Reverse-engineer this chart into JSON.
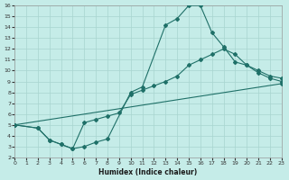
{
  "xlabel": "Humidex (Indice chaleur)",
  "bg_color": "#c5ece8",
  "grid_color": "#a8d4cf",
  "line_color": "#1f7068",
  "xlim": [
    0,
    23
  ],
  "ylim": [
    2,
    16
  ],
  "xticks": [
    0,
    1,
    2,
    3,
    4,
    5,
    6,
    7,
    8,
    9,
    10,
    11,
    12,
    13,
    14,
    15,
    16,
    17,
    18,
    19,
    20,
    21,
    22,
    23
  ],
  "yticks": [
    2,
    3,
    4,
    5,
    6,
    7,
    8,
    9,
    10,
    11,
    12,
    13,
    14,
    15,
    16
  ],
  "line1_x": [
    0,
    2,
    3,
    4,
    5,
    6,
    7,
    8,
    10,
    11,
    13,
    14,
    15,
    16,
    17,
    18,
    19,
    20,
    21,
    22,
    23
  ],
  "line1_y": [
    5,
    4.7,
    3.6,
    3.2,
    2.8,
    3.0,
    3.4,
    3.7,
    8.0,
    8.5,
    14.2,
    14.8,
    16.0,
    16.0,
    13.5,
    12.2,
    10.8,
    10.5,
    10.0,
    9.5,
    9.3
  ],
  "line2_x": [
    0,
    2,
    3,
    4,
    5,
    6,
    7,
    8,
    9,
    10,
    11,
    12,
    13,
    14,
    15,
    16,
    17,
    18,
    19,
    20,
    21,
    22,
    23
  ],
  "line2_y": [
    5,
    4.7,
    3.6,
    3.2,
    2.8,
    5.2,
    5.5,
    5.8,
    6.1,
    7.8,
    8.2,
    8.6,
    9.0,
    9.5,
    10.5,
    11.0,
    11.5,
    12.0,
    11.5,
    10.5,
    9.8,
    9.3,
    9.0
  ],
  "line3_x": [
    0,
    23
  ],
  "line3_y": [
    5.0,
    8.8
  ]
}
